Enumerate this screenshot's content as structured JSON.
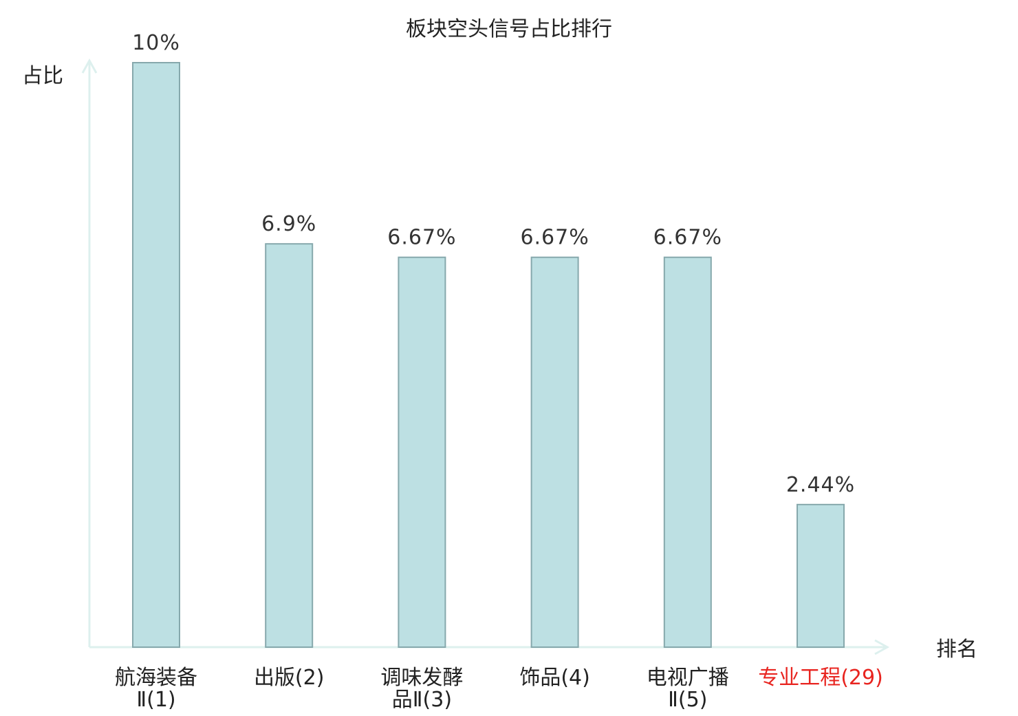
{
  "chart_data": {
    "type": "bar",
    "title": "板块空头信号占比排行",
    "ylabel": "占比",
    "xlabel": "排名",
    "categories": [
      {
        "name": "航海装备Ⅱ",
        "rank": "(1)",
        "lines": [
          "航海装备",
          "Ⅱ(1)"
        ],
        "highlight": false
      },
      {
        "name": "出版",
        "rank": "(2)",
        "lines": [
          "出版(2)"
        ],
        "highlight": false
      },
      {
        "name": "调味发酵品Ⅱ",
        "rank": "(3)",
        "lines": [
          "调味发酵",
          "品Ⅱ(3)"
        ],
        "highlight": false
      },
      {
        "name": "饰品",
        "rank": "(4)",
        "lines": [
          "饰品(4)"
        ],
        "highlight": false
      },
      {
        "name": "电视广播Ⅱ",
        "rank": "(5)",
        "lines": [
          "电视广播",
          "Ⅱ(5)"
        ],
        "highlight": false
      },
      {
        "name": "专业工程",
        "rank": "(29)",
        "lines": [
          "专业工程(29)"
        ],
        "highlight": true
      }
    ],
    "values": [
      10,
      6.9,
      6.67,
      6.67,
      6.67,
      2.44
    ],
    "value_labels": [
      "10%",
      "6.9%",
      "6.67%",
      "6.67%",
      "6.67%",
      "2.44%"
    ],
    "ylim": [
      0,
      10
    ],
    "grid": false,
    "colors": {
      "bar_fill": "#bde0e3",
      "bar_stroke": "#86a8ac",
      "axis": "#ddf0ee",
      "highlight_text": "#e8241f",
      "text": "#222222",
      "value_text": "#333333"
    }
  }
}
